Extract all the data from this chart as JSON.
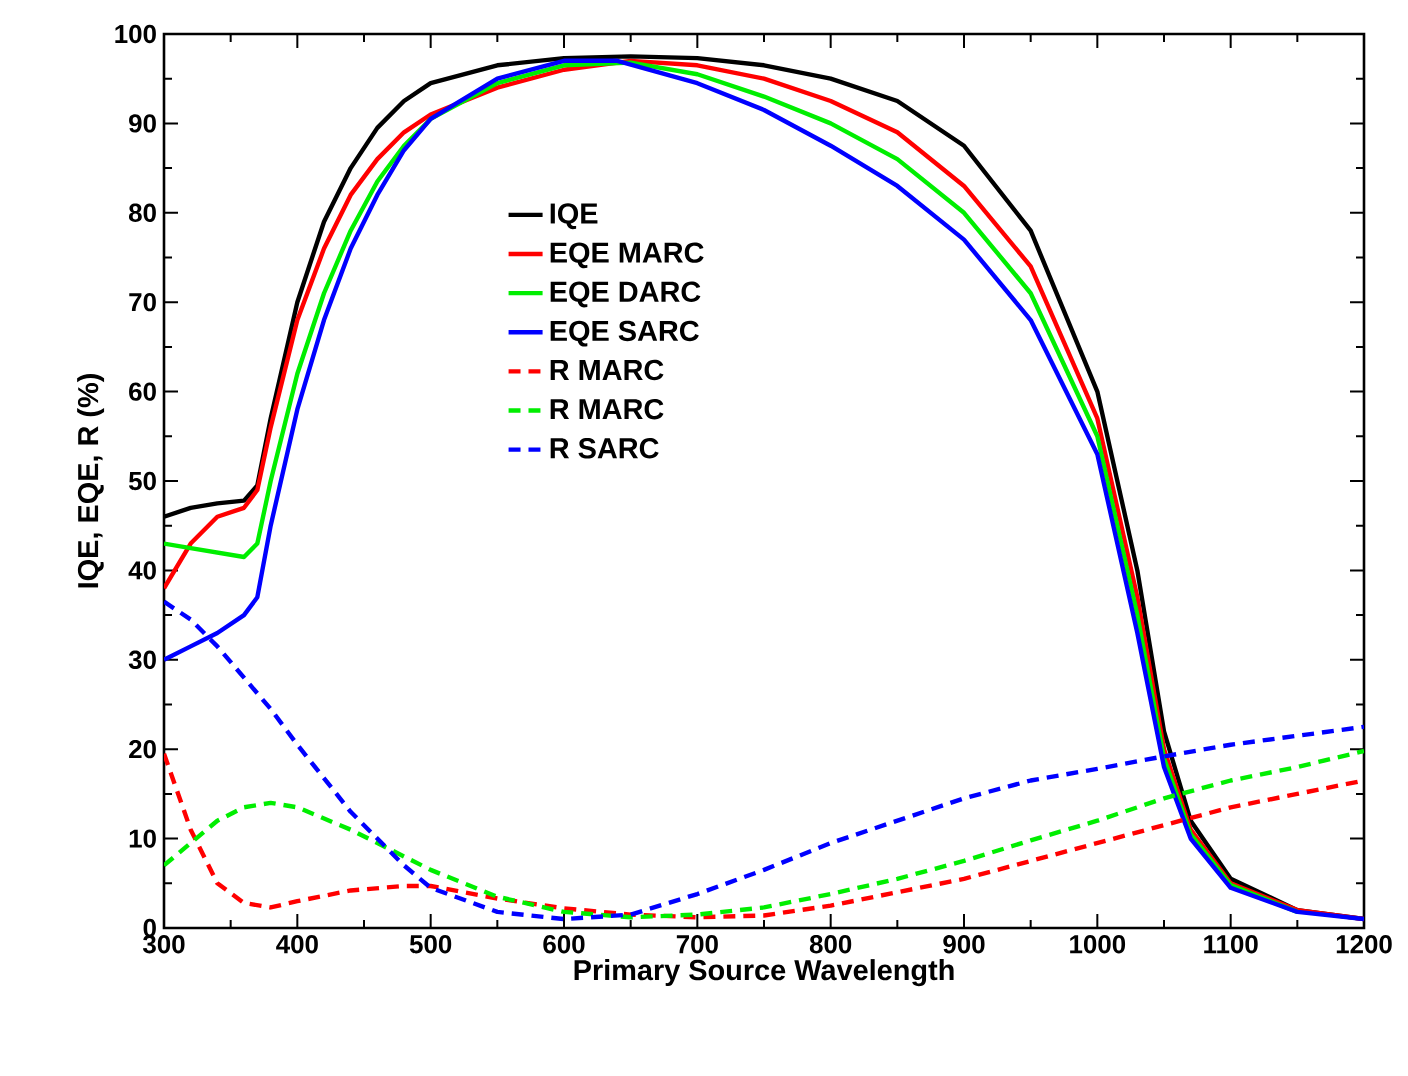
{
  "chart_data": {
    "type": "line",
    "xlabel": "Primary Source Wavelength",
    "ylabel": "IQE, EQE, R (%)",
    "xlim": [
      300,
      1200
    ],
    "xticks": [
      300,
      400,
      500,
      600,
      700,
      800,
      900,
      1000,
      1100,
      1200
    ],
    "ylim": [
      0,
      100
    ],
    "yticks": [
      0,
      10,
      20,
      30,
      40,
      50,
      60,
      70,
      80,
      90,
      100
    ],
    "grid": false,
    "legend": "center",
    "series": [
      {
        "name": "IQE",
        "color": "#000000",
        "line_style": "solid",
        "x": [
          300,
          320,
          340,
          360,
          370,
          380,
          400,
          420,
          440,
          460,
          480,
          500,
          550,
          600,
          650,
          700,
          750,
          800,
          850,
          900,
          950,
          1000,
          1030,
          1050,
          1070,
          1100,
          1150,
          1200
        ],
        "values": [
          46,
          47,
          47.5,
          47.8,
          49.5,
          57,
          70,
          79,
          85,
          89.5,
          92.5,
          94.5,
          96.5,
          97.3,
          97.5,
          97.3,
          96.5,
          95,
          92.5,
          87.5,
          78,
          60,
          40,
          22,
          12,
          5.5,
          2,
          1
        ]
      },
      {
        "name": "EQE MARC",
        "color": "#ff0000",
        "line_style": "solid",
        "x": [
          300,
          320,
          340,
          360,
          370,
          380,
          400,
          420,
          440,
          460,
          480,
          500,
          550,
          600,
          650,
          700,
          750,
          800,
          850,
          900,
          950,
          1000,
          1030,
          1050,
          1070,
          1100,
          1150,
          1200
        ],
        "values": [
          38,
          43,
          46,
          47,
          49,
          56,
          68,
          76,
          82,
          86,
          89,
          91,
          94,
          96,
          97,
          96.5,
          95,
          92.5,
          89,
          83,
          74,
          57,
          37,
          20,
          11,
          5,
          2,
          1
        ]
      },
      {
        "name": "EQE DARC",
        "color": "#00ee00",
        "line_style": "solid",
        "x": [
          300,
          320,
          340,
          360,
          370,
          380,
          400,
          420,
          440,
          460,
          480,
          500,
          550,
          600,
          650,
          700,
          750,
          800,
          850,
          900,
          950,
          1000,
          1030,
          1050,
          1070,
          1100,
          1150
        ],
        "values": [
          43,
          42.5,
          42,
          41.5,
          43,
          50,
          62,
          71,
          78,
          83.5,
          87.5,
          90.5,
          94.5,
          96.5,
          96.8,
          95.5,
          93,
          90,
          86,
          80,
          71,
          55,
          35,
          19,
          10.5,
          4.8,
          1.8
        ]
      },
      {
        "name": "EQE SARC",
        "color": "#0000ff",
        "line_style": "solid",
        "x": [
          300,
          320,
          340,
          360,
          370,
          380,
          400,
          420,
          440,
          460,
          480,
          500,
          550,
          600,
          640,
          700,
          750,
          800,
          850,
          900,
          950,
          1000,
          1030,
          1050,
          1070,
          1100,
          1150,
          1200
        ],
        "values": [
          30,
          31.5,
          33,
          35,
          37,
          45,
          58,
          68,
          76,
          82,
          87,
          90.5,
          95,
          97,
          97,
          94.5,
          91.5,
          87.5,
          83,
          77,
          68,
          53,
          33,
          18,
          10,
          4.5,
          1.8,
          1
        ]
      },
      {
        "name": "R MARC",
        "color": "#ff0000",
        "line_style": "dashed",
        "x": [
          300,
          320,
          340,
          360,
          380,
          400,
          440,
          480,
          500,
          550,
          600,
          650,
          700,
          750,
          800,
          850,
          900,
          950,
          1000,
          1050,
          1100,
          1150,
          1200
        ],
        "values": [
          19.5,
          11,
          5,
          2.8,
          2.3,
          3,
          4.2,
          4.7,
          4.7,
          3.3,
          2.2,
          1.5,
          1.2,
          1.4,
          2.5,
          4,
          5.5,
          7.5,
          9.5,
          11.5,
          13.5,
          15,
          16.5
        ]
      },
      {
        "name": "R MARC",
        "color": "#00ee00",
        "line_style": "dashed",
        "x": [
          300,
          320,
          340,
          360,
          380,
          400,
          440,
          480,
          500,
          550,
          600,
          650,
          700,
          750,
          800,
          850,
          900,
          950,
          1000,
          1050,
          1100,
          1150,
          1200
        ],
        "values": [
          7,
          9.5,
          12,
          13.5,
          14,
          13.5,
          11,
          8,
          6.5,
          3.5,
          1.8,
          1.2,
          1.5,
          2.3,
          3.8,
          5.5,
          7.5,
          9.8,
          12,
          14.5,
          16.5,
          18,
          19.8
        ]
      },
      {
        "name": "R SARC",
        "color": "#0000ff",
        "line_style": "dashed",
        "x": [
          300,
          320,
          340,
          360,
          380,
          400,
          440,
          480,
          500,
          550,
          600,
          650,
          700,
          750,
          800,
          850,
          900,
          950,
          1000,
          1050,
          1100,
          1150,
          1200
        ],
        "values": [
          36.5,
          34.5,
          31.5,
          28,
          24.5,
          20.5,
          13,
          7,
          4.5,
          1.8,
          1,
          1.5,
          3.8,
          6.5,
          9.5,
          12,
          14.5,
          16.5,
          17.8,
          19.2,
          20.5,
          21.5,
          22.5
        ]
      }
    ]
  }
}
